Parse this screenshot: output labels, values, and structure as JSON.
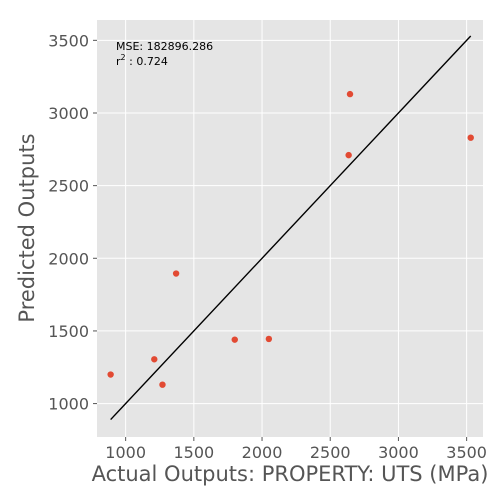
{
  "chart_data": {
    "type": "scatter",
    "title": "",
    "xlabel": "Actual Outputs: PROPERTY: UTS (MPa)",
    "ylabel": "Predicted Outputs",
    "xlim": [
      790,
      3620
    ],
    "ylim": [
      770,
      3640
    ],
    "xticks": [
      1000,
      1500,
      2000,
      2500,
      3000,
      3500
    ],
    "yticks": [
      1000,
      1500,
      2000,
      2500,
      3000,
      3500
    ],
    "grid": true,
    "background": "#e5e5e5",
    "point_color": "#e24a33",
    "line_color": "#000000",
    "identity_line": [
      [
        890,
        890
      ],
      [
        3530,
        3530
      ]
    ],
    "annotations": {
      "mse": "MSE: 182896.286",
      "r2_prefix": "r",
      "r2_sup": "2",
      "r2_value": " : 0.724"
    },
    "points": [
      {
        "x": 890,
        "y": 1200
      },
      {
        "x": 1210,
        "y": 1305
      },
      {
        "x": 1270,
        "y": 1130
      },
      {
        "x": 1370,
        "y": 1895
      },
      {
        "x": 1800,
        "y": 1440
      },
      {
        "x": 2050,
        "y": 1445
      },
      {
        "x": 2635,
        "y": 2710
      },
      {
        "x": 2645,
        "y": 3130
      },
      {
        "x": 3530,
        "y": 2830
      }
    ]
  }
}
